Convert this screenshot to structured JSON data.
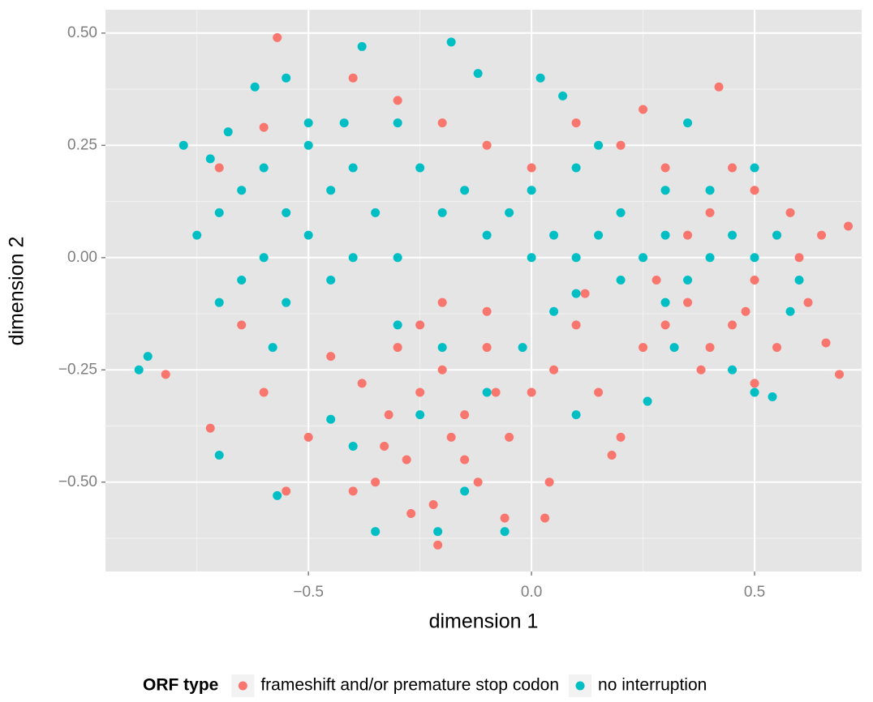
{
  "chart_data": {
    "type": "scatter",
    "x_label": "dimension 1",
    "y_label": "dimension 2",
    "xlim": [
      -0.955,
      0.74
    ],
    "ylim": [
      -0.699,
      0.552
    ],
    "xticks": [
      {
        "value": -0.5,
        "label": "−0.5"
      },
      {
        "value": 0,
        "label": "0.0"
      },
      {
        "value": 0.5,
        "label": "0.5"
      }
    ],
    "yticks": [
      {
        "value": 0.5,
        "label": "0.50"
      },
      {
        "value": 0.25,
        "label": "0.25"
      },
      {
        "value": 0,
        "label": "0.00"
      },
      {
        "value": -0.25,
        "label": "−0.25"
      },
      {
        "value": -0.5,
        "label": "−0.50"
      }
    ],
    "x_minor_ticks": [
      -0.75,
      -0.25,
      0.25
    ],
    "y_minor_ticks": [
      0.375,
      0.125,
      -0.125,
      -0.375,
      -0.625
    ],
    "grid": true,
    "legend_title": "ORF type",
    "legend_position": "bottom",
    "series": [
      {
        "name": "frameshift and/or premature stop codon",
        "color": "#F8766D",
        "x": [
          -0.57,
          -0.21,
          -0.82,
          0.69,
          0.71,
          0.42,
          0.5,
          -0.72,
          -0.3,
          -0.25,
          -0.2,
          -0.15,
          -0.1,
          -0.28,
          -0.35,
          -0.4,
          -0.22,
          -0.18,
          -0.12,
          -0.05,
          0.0,
          0.05,
          -0.32,
          -0.38,
          -0.45,
          -0.5,
          -0.55,
          -0.6,
          -0.65,
          -0.25,
          -0.2,
          -0.1,
          0.1,
          0.15,
          0.2,
          0.25,
          0.3,
          0.35,
          0.4,
          0.45,
          0.5,
          0.55,
          0.6,
          0.62,
          0.58,
          0.5,
          0.45,
          0.4,
          0.35,
          0.3,
          0.2,
          0.1,
          0.0,
          -0.1,
          -0.2,
          -0.3,
          -0.4,
          -0.6,
          0.65,
          0.66,
          0.04,
          -0.06,
          0.03,
          0.18,
          0.25,
          -0.7,
          -0.15,
          -0.08,
          0.12,
          0.28,
          0.38,
          0.48,
          0.55,
          -0.27,
          -0.33
        ],
        "y": [
          0.49,
          -0.64,
          -0.26,
          -0.26,
          0.07,
          0.38,
          -0.28,
          -0.38,
          -0.2,
          -0.3,
          -0.25,
          -0.35,
          -0.2,
          -0.45,
          -0.5,
          -0.52,
          -0.55,
          -0.4,
          -0.5,
          -0.4,
          -0.3,
          -0.25,
          -0.35,
          -0.28,
          -0.22,
          -0.4,
          -0.52,
          -0.3,
          -0.15,
          -0.15,
          -0.1,
          -0.12,
          -0.15,
          -0.3,
          -0.4,
          -0.2,
          -0.15,
          -0.1,
          -0.2,
          -0.15,
          -0.05,
          0.05,
          0.0,
          -0.1,
          0.1,
          0.15,
          0.2,
          0.1,
          0.05,
          0.2,
          0.25,
          0.3,
          0.2,
          0.25,
          0.3,
          0.35,
          0.4,
          0.29,
          0.05,
          -0.19,
          -0.5,
          -0.58,
          -0.58,
          -0.44,
          0.33,
          0.2,
          -0.45,
          -0.3,
          -0.08,
          -0.05,
          -0.25,
          -0.12,
          -0.2,
          -0.57,
          -0.42
        ]
      },
      {
        "name": "no interruption",
        "color": "#00BFC4",
        "x": [
          -0.88,
          -0.86,
          -0.35,
          -0.21,
          -0.06,
          -0.18,
          -0.38,
          0.54,
          0.5,
          -0.57,
          -0.7,
          -0.65,
          -0.6,
          -0.55,
          -0.5,
          -0.45,
          -0.4,
          -0.35,
          -0.3,
          -0.6,
          -0.65,
          -0.7,
          -0.55,
          -0.5,
          -0.45,
          -0.4,
          -0.75,
          -0.78,
          -0.62,
          -0.55,
          -0.5,
          -0.42,
          -0.3,
          -0.25,
          -0.2,
          -0.15,
          -0.1,
          -0.05,
          0.0,
          0.0,
          0.05,
          0.1,
          0.15,
          0.2,
          0.25,
          0.3,
          0.35,
          0.4,
          0.45,
          0.5,
          0.3,
          0.2,
          0.1,
          0.1,
          0.15,
          0.3,
          0.4,
          0.5,
          0.55,
          0.02,
          0.07,
          -0.12,
          -0.3,
          -0.2,
          -0.1,
          -0.25,
          -0.15,
          -0.45,
          -0.4,
          -0.7,
          0.1,
          0.26,
          0.32,
          0.45,
          0.35,
          -0.58,
          -0.68,
          -0.72,
          0.58,
          0.6,
          -0.02,
          0.05
        ],
        "y": [
          -0.25,
          -0.22,
          -0.61,
          -0.61,
          -0.61,
          0.48,
          0.47,
          -0.31,
          -0.3,
          -0.53,
          0.1,
          0.15,
          0.2,
          0.1,
          0.05,
          0.15,
          0.2,
          0.1,
          0.0,
          0.0,
          -0.05,
          -0.1,
          -0.1,
          0.25,
          -0.05,
          0.0,
          0.05,
          0.25,
          0.38,
          0.4,
          0.3,
          0.3,
          0.3,
          0.2,
          0.1,
          0.15,
          0.05,
          0.1,
          0.15,
          0.0,
          0.05,
          0.0,
          0.05,
          0.1,
          0.0,
          0.05,
          -0.05,
          0.0,
          0.05,
          0.0,
          -0.1,
          -0.05,
          -0.08,
          0.2,
          0.25,
          0.15,
          0.15,
          0.2,
          0.05,
          0.4,
          0.36,
          0.41,
          -0.15,
          -0.2,
          -0.3,
          -0.35,
          -0.52,
          -0.36,
          -0.42,
          -0.44,
          -0.35,
          -0.32,
          -0.2,
          -0.25,
          0.3,
          -0.2,
          0.28,
          0.22,
          -0.12,
          -0.05,
          -0.2,
          -0.12
        ]
      }
    ]
  }
}
